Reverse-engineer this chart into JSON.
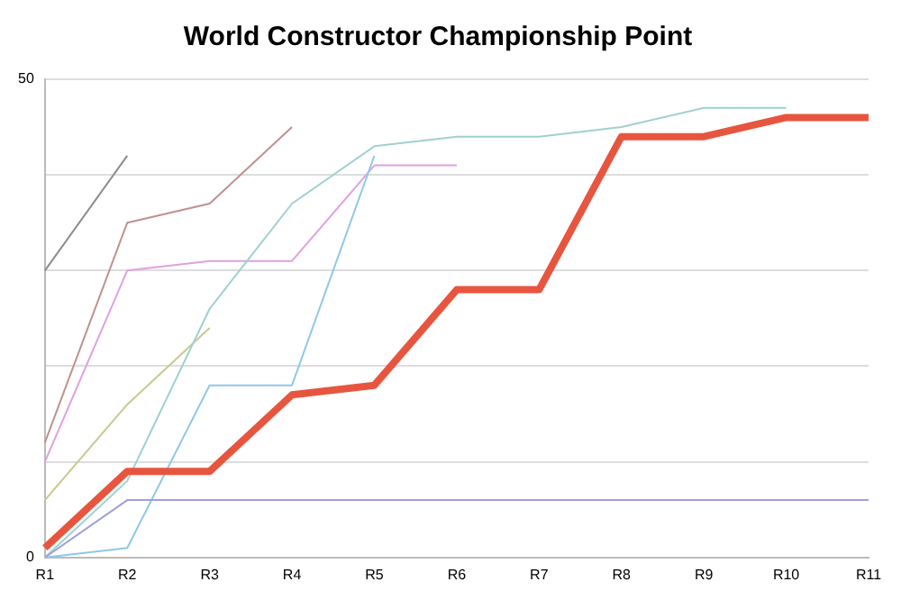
{
  "chart_data": {
    "type": "line",
    "title": "World Constructor Championship Point",
    "categories": [
      "R1",
      "R2",
      "R3",
      "R4",
      "R5",
      "R6",
      "R7",
      "R8",
      "R9",
      "R10",
      "R11"
    ],
    "series": [
      {
        "color": "#8c8c8c",
        "values": [
          30,
          42,
          null,
          null,
          null,
          null,
          null,
          null,
          null,
          null,
          null
        ]
      },
      {
        "color": "#c09090",
        "values": [
          12,
          35,
          37,
          45,
          null,
          null,
          null,
          null,
          null,
          null,
          null
        ]
      },
      {
        "color": "#e0a0e0",
        "values": [
          10,
          30,
          31,
          31,
          41,
          41,
          null,
          null,
          null,
          null,
          null
        ]
      },
      {
        "color": "#c8c890",
        "values": [
          6,
          16,
          24,
          null,
          null,
          null,
          null,
          null,
          null,
          null,
          null
        ]
      },
      {
        "color": "#a0d0d0",
        "values": [
          0,
          8,
          26,
          37,
          43,
          44,
          44,
          45,
          47,
          47,
          null
        ]
      },
      {
        "color": "#90c8e8",
        "values": [
          0,
          1,
          18,
          18,
          42,
          null,
          null,
          null,
          null,
          null,
          null
        ]
      },
      {
        "color": "#a0a0d8",
        "values": [
          0,
          6,
          6,
          6,
          6,
          6,
          6,
          6,
          6,
          6,
          6
        ]
      },
      {
        "color": "#e8553f",
        "values": [
          1,
          9,
          9,
          17,
          18,
          28,
          28,
          44,
          44,
          46,
          46
        ]
      }
    ],
    "ylim": [
      0,
      50
    ],
    "yticks": [
      0,
      {
        "value": 10,
        "label": null
      },
      {
        "value": 20,
        "label": null
      },
      {
        "value": 30,
        "label": null
      },
      {
        "value": 40,
        "label": null
      },
      50
    ],
    "grid": "y",
    "legend": false
  }
}
